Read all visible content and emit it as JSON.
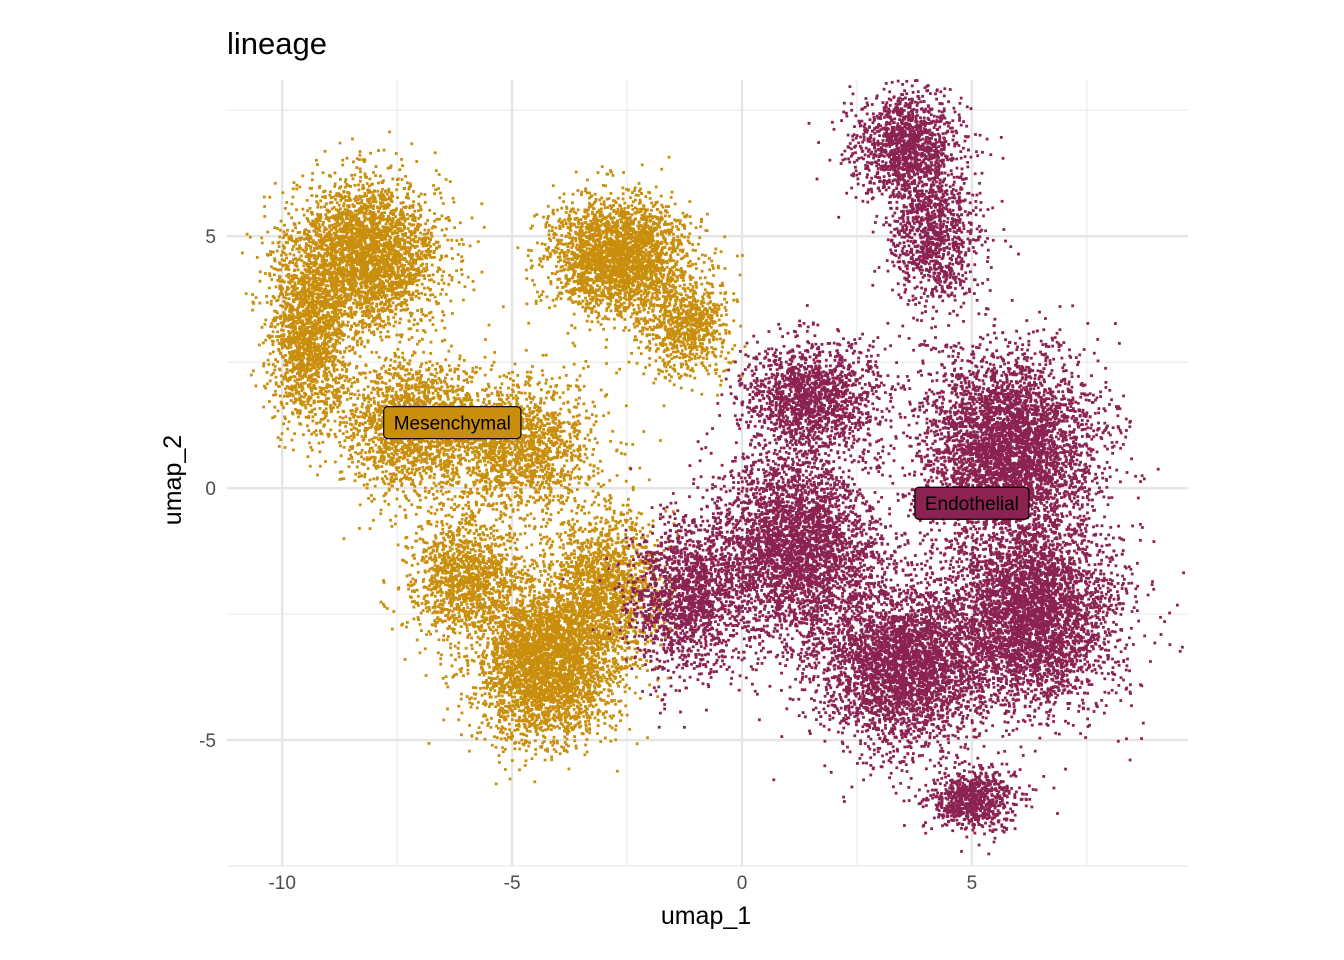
{
  "chart_data": {
    "type": "scatter",
    "title": "lineage",
    "xlabel": "umap_1",
    "ylabel": "umap_2",
    "xlim": [
      -11.2,
      9.7
    ],
    "ylim": [
      -7.5,
      8.1
    ],
    "xticks": [
      -10,
      -5,
      0,
      5
    ],
    "yticks": [
      -5,
      0,
      5
    ],
    "grid": true,
    "legend": "none",
    "series": [
      {
        "name": "Mesenchymal",
        "color": "#C98E0C",
        "label_position": [
          -6.3,
          1.3
        ],
        "regions": [
          {
            "cx": -8.2,
            "cy": 4.6,
            "sx": 1.3,
            "sy": 1.2,
            "weight": 1.2
          },
          {
            "cx": -9.4,
            "cy": 3.0,
            "sx": 0.7,
            "sy": 1.3,
            "weight": 0.6
          },
          {
            "cx": -2.7,
            "cy": 4.6,
            "sx": 1.2,
            "sy": 0.9,
            "weight": 1.0
          },
          {
            "cx": -7.2,
            "cy": 1.2,
            "sx": 1.3,
            "sy": 1.1,
            "weight": 0.7
          },
          {
            "cx": -4.8,
            "cy": 0.8,
            "sx": 1.3,
            "sy": 1.1,
            "weight": 0.6
          },
          {
            "cx": -4.3,
            "cy": -3.5,
            "sx": 1.2,
            "sy": 1.2,
            "weight": 1.3
          },
          {
            "cx": -6.0,
            "cy": -1.8,
            "sx": 1.0,
            "sy": 1.0,
            "weight": 0.5
          },
          {
            "cx": -3.0,
            "cy": -2.0,
            "sx": 1.0,
            "sy": 1.2,
            "weight": 0.6
          },
          {
            "cx": -1.2,
            "cy": 3.2,
            "sx": 0.8,
            "sy": 0.8,
            "weight": 0.3
          }
        ]
      },
      {
        "name": "Endothelial",
        "color": "#8B2252",
        "label_position": [
          5.0,
          -0.3
        ],
        "regions": [
          {
            "cx": 3.6,
            "cy": 6.8,
            "sx": 0.9,
            "sy": 0.9,
            "weight": 0.5
          },
          {
            "cx": 4.2,
            "cy": 5.0,
            "sx": 0.8,
            "sy": 1.1,
            "weight": 0.4
          },
          {
            "cx": 5.8,
            "cy": 0.8,
            "sx": 1.5,
            "sy": 1.5,
            "weight": 1.6
          },
          {
            "cx": 6.3,
            "cy": -2.5,
            "sx": 1.5,
            "sy": 1.5,
            "weight": 1.5
          },
          {
            "cx": 3.5,
            "cy": -3.5,
            "sx": 1.5,
            "sy": 1.3,
            "weight": 1.3
          },
          {
            "cx": 1.2,
            "cy": -1.2,
            "sx": 1.4,
            "sy": 1.5,
            "weight": 1.3
          },
          {
            "cx": 1.5,
            "cy": 1.8,
            "sx": 1.2,
            "sy": 0.9,
            "weight": 0.6
          },
          {
            "cx": -1.2,
            "cy": -2.2,
            "sx": 1.0,
            "sy": 1.2,
            "weight": 0.6
          },
          {
            "cx": 5.0,
            "cy": -6.2,
            "sx": 0.8,
            "sy": 0.5,
            "weight": 0.3
          }
        ]
      }
    ]
  }
}
